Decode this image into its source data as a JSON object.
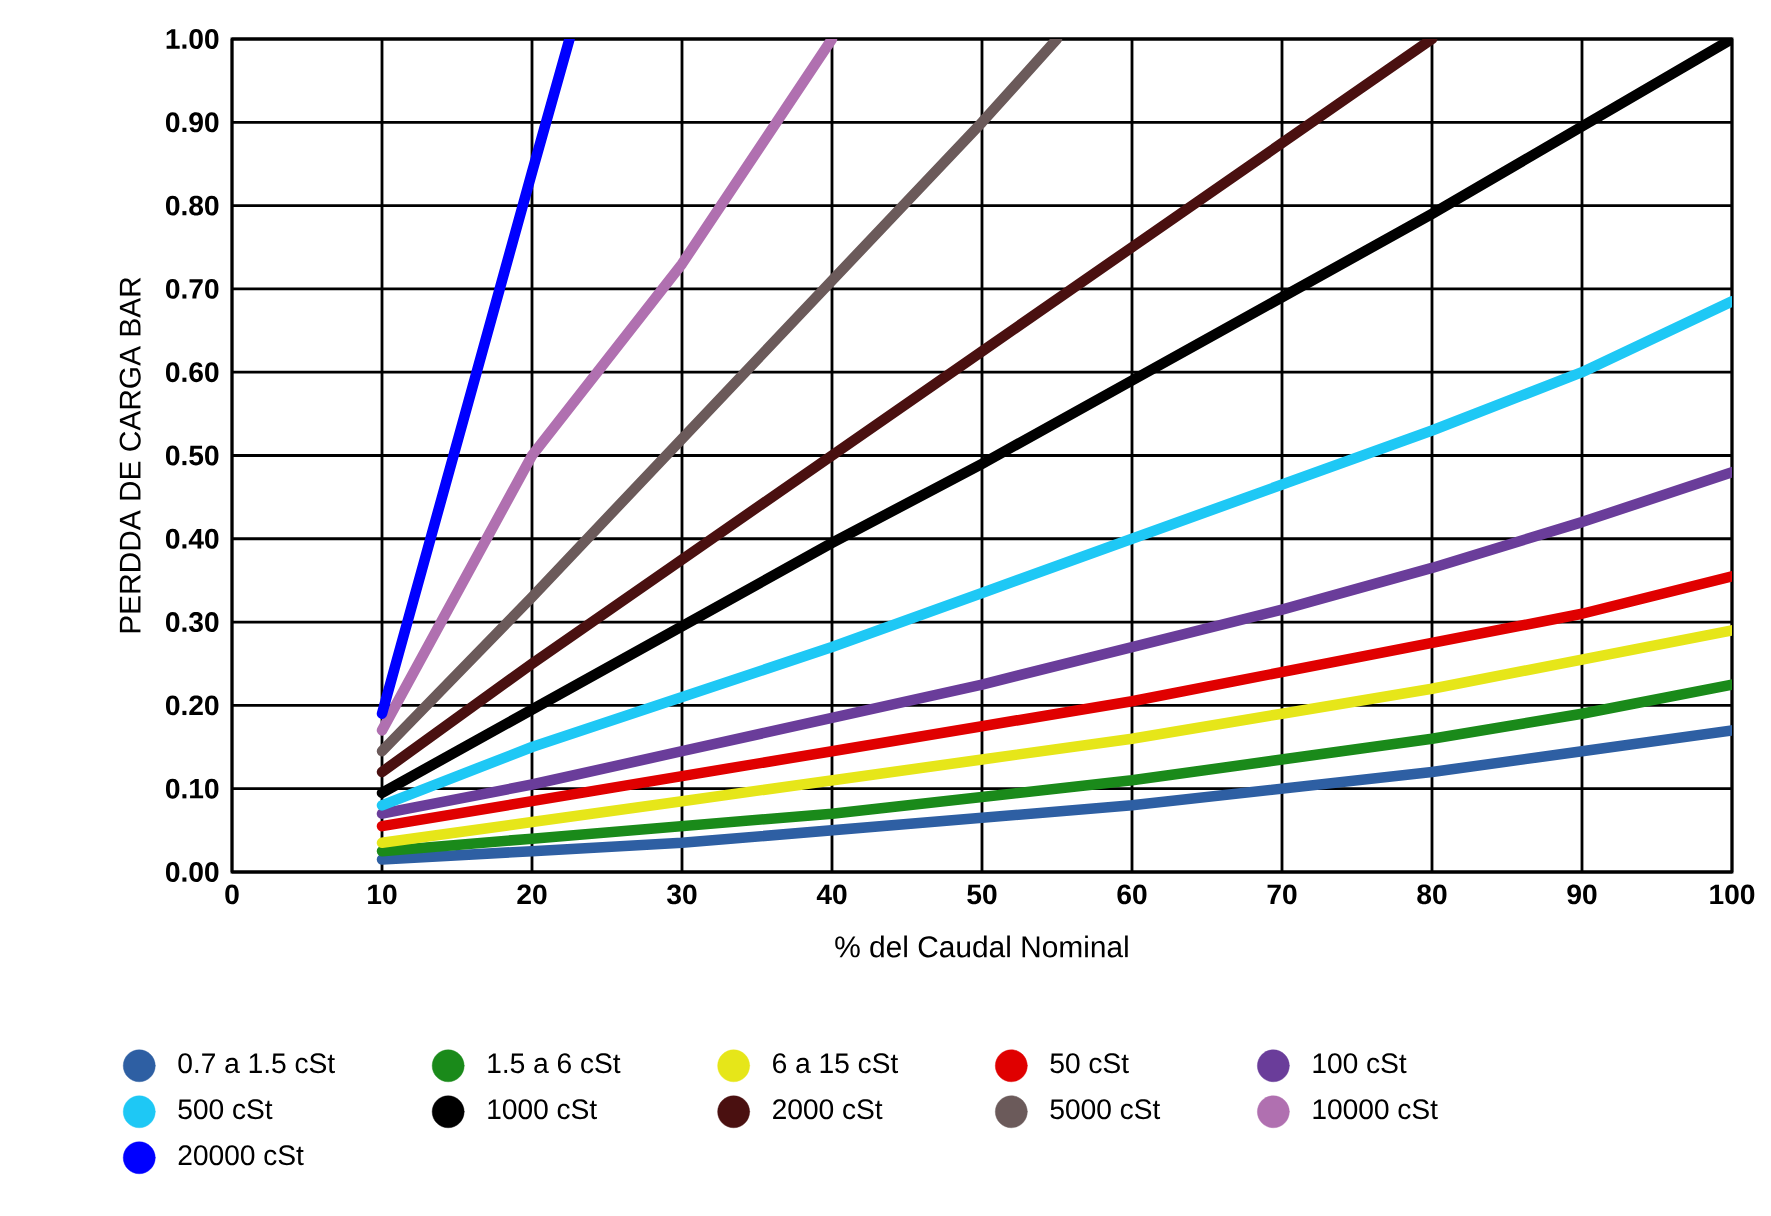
{
  "chart_data": {
    "type": "line",
    "xlabel": "% del Caudal Nominal",
    "ylabel": "PERDDA DE CARGA BAR",
    "x": [
      10,
      20,
      30,
      40,
      50,
      60,
      70,
      80,
      90,
      100
    ],
    "xlim": [
      0,
      100
    ],
    "ylim": [
      0,
      1
    ],
    "xticks": [
      0,
      10,
      20,
      30,
      40,
      50,
      60,
      70,
      80,
      90,
      100
    ],
    "yticks": [
      {
        "value": 0,
        "label": "0.00"
      },
      {
        "value": 0.1,
        "label": "0.10"
      },
      {
        "value": 0.2,
        "label": "0.20"
      },
      {
        "value": 0.3,
        "label": "0.30"
      },
      {
        "value": 0.4,
        "label": "0.40"
      },
      {
        "value": 0.5,
        "label": "0.50"
      },
      {
        "value": 0.6,
        "label": "0.60"
      },
      {
        "value": 0.7,
        "label": "0.70"
      },
      {
        "value": 0.8,
        "label": "0.80"
      },
      {
        "value": 0.9,
        "label": "0.90"
      },
      {
        "value": 1,
        "label": "1.00"
      }
    ],
    "grid": true,
    "legend": "bottom",
    "marker": "none",
    "line_style": "solid",
    "series": [
      {
        "name": "0.7 a 1.5 cSt",
        "color": "#2e5fa3",
        "values": [
          0.015,
          0.025,
          0.035,
          0.05,
          0.065,
          0.08,
          0.1,
          0.12,
          0.145,
          0.17
        ]
      },
      {
        "name": "1.5 a 6 cSt",
        "color": "#1a8a1a",
        "values": [
          0.025,
          0.04,
          0.055,
          0.07,
          0.09,
          0.11,
          0.135,
          0.16,
          0.19,
          0.225
        ]
      },
      {
        "name": "6 a 15 cSt",
        "color": "#e6e619",
        "values": [
          0.035,
          0.06,
          0.085,
          0.11,
          0.135,
          0.16,
          0.19,
          0.22,
          0.255,
          0.29
        ]
      },
      {
        "name": "50 cSt",
        "color": "#e00000",
        "values": [
          0.055,
          0.085,
          0.115,
          0.145,
          0.175,
          0.205,
          0.24,
          0.275,
          0.31,
          0.355
        ]
      },
      {
        "name": "100 cSt",
        "color": "#6a3d9a",
        "values": [
          0.07,
          0.105,
          0.145,
          0.185,
          0.225,
          0.27,
          0.315,
          0.365,
          0.42,
          0.48
        ]
      },
      {
        "name": "500 cSt",
        "color": "#1ec8f5",
        "values": [
          0.08,
          0.15,
          0.21,
          0.27,
          0.335,
          0.4,
          0.465,
          0.53,
          0.6,
          0.685
        ]
      },
      {
        "name": "1000 cSt",
        "color": "#000000",
        "values": [
          0.095,
          0.195,
          0.295,
          0.395,
          0.49,
          0.59,
          0.69,
          0.79,
          0.895,
          1.0
        ]
      },
      {
        "name": "2000 cSt",
        "color": "#4a1010",
        "x": [
          10,
          20,
          30,
          40,
          50,
          60,
          70,
          80
        ],
        "values": [
          0.12,
          0.25,
          0.375,
          0.5,
          0.625,
          0.75,
          0.875,
          1.0
        ]
      },
      {
        "name": "5000 cSt",
        "color": "#6b5a5a",
        "x": [
          10,
          20,
          30,
          40,
          50,
          55
        ],
        "values": [
          0.145,
          0.33,
          0.52,
          0.71,
          0.9,
          1.0
        ]
      },
      {
        "name": "10000 cSt",
        "color": "#b070b0",
        "x": [
          10,
          20,
          30,
          40
        ],
        "values": [
          0.17,
          0.5,
          0.73,
          1.0
        ]
      },
      {
        "name": "20000 cSt",
        "color": "#0000ff",
        "x": [
          10,
          20,
          22.5
        ],
        "values": [
          0.19,
          0.84,
          1.0
        ]
      }
    ]
  }
}
